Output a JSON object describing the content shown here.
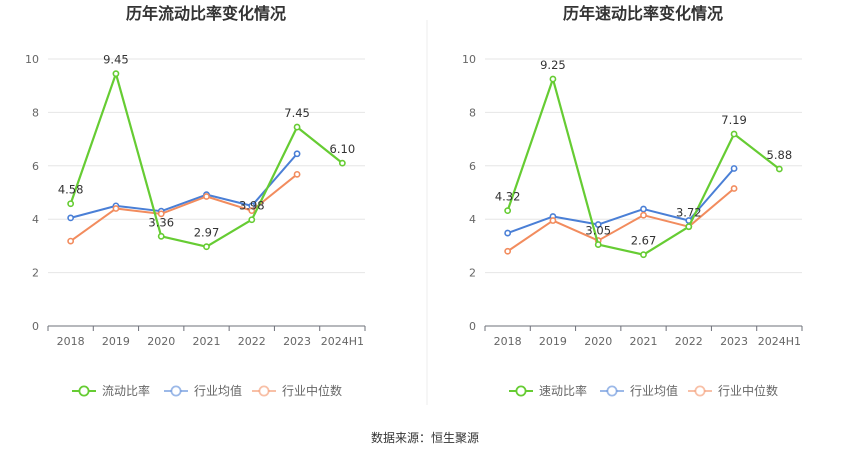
{
  "source_text": "数据来源：恒生聚源",
  "chart_data": [
    {
      "type": "line",
      "title": "历年流动比率变化情况",
      "categories": [
        "2018",
        "2019",
        "2020",
        "2021",
        "2022",
        "2023",
        "2024H1"
      ],
      "ylim": [
        0,
        10
      ],
      "yticks": [
        "0",
        "2",
        "4",
        "6",
        "8",
        "10"
      ],
      "grid": true,
      "legend_position": "bottom",
      "series": [
        {
          "name": "流动比率",
          "color": "#66cc33",
          "values": [
            4.58,
            9.45,
            3.36,
            2.97,
            3.98,
            7.45,
            6.1
          ],
          "labels": [
            "4.58",
            "9.45",
            "3.36",
            "2.97",
            "3.98",
            "7.45",
            "6.10"
          ]
        },
        {
          "name": "行业均值",
          "color": "#4a7fd6",
          "values": [
            4.05,
            4.5,
            4.3,
            4.92,
            4.5,
            6.45,
            null
          ]
        },
        {
          "name": "行业中位数",
          "color": "#f28c5e",
          "values": [
            3.18,
            4.4,
            4.2,
            4.85,
            4.32,
            5.68,
            null
          ]
        }
      ]
    },
    {
      "type": "line",
      "title": "历年速动比率变化情况",
      "categories": [
        "2018",
        "2019",
        "2020",
        "2021",
        "2022",
        "2023",
        "2024H1"
      ],
      "ylim": [
        0,
        10
      ],
      "yticks": [
        "0",
        "2",
        "4",
        "6",
        "8",
        "10"
      ],
      "grid": true,
      "legend_position": "bottom",
      "series": [
        {
          "name": "速动比率",
          "color": "#66cc33",
          "values": [
            4.32,
            9.25,
            3.05,
            2.67,
            3.72,
            7.19,
            5.88
          ],
          "labels": [
            "4.32",
            "9.25",
            "3.05",
            "2.67",
            "3.72",
            "7.19",
            "5.88"
          ]
        },
        {
          "name": "行业均值",
          "color": "#4a7fd6",
          "values": [
            3.48,
            4.1,
            3.8,
            4.38,
            3.95,
            5.9,
            null
          ]
        },
        {
          "name": "行业中位数",
          "color": "#f28c5e",
          "values": [
            2.8,
            3.95,
            3.2,
            4.15,
            3.72,
            5.15,
            null
          ]
        }
      ]
    }
  ]
}
